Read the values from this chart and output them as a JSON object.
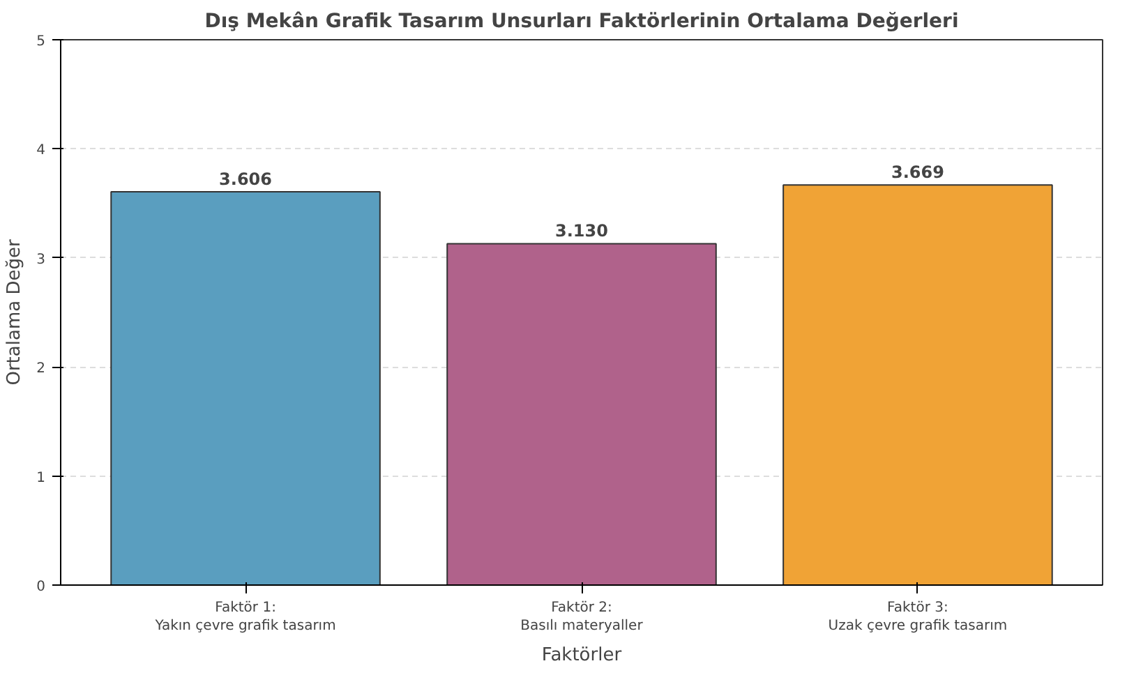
{
  "chart_data": {
    "type": "bar",
    "title": "Dış Mekân Grafik Tasarım Unsurları Faktörlerinin Ortalama Değerleri",
    "xlabel": "Faktörler",
    "ylabel": "Ortalama Değer",
    "categories": [
      "Faktör 1:\nYakın çevre grafik tasarım",
      "Faktör 2:\nBasılı materyaller",
      "Faktör 3:\nUzak çevre grafik tasarım"
    ],
    "values": [
      3.606,
      3.13,
      3.669
    ],
    "value_labels": [
      "3.606",
      "3.130",
      "3.669"
    ],
    "colors": [
      "#5a9ebf",
      "#b0628b",
      "#f0a336"
    ],
    "ylim": [
      0,
      5
    ],
    "yticks": [
      0,
      1,
      2,
      3,
      4,
      5
    ],
    "grid": "y"
  }
}
